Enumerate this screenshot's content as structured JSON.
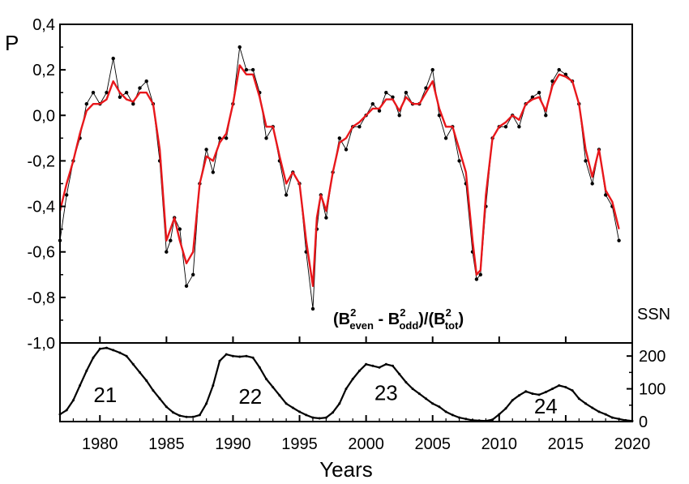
{
  "chart_data": [
    {
      "type": "line",
      "panel": "polarity",
      "ylabel": "P",
      "annotation": {
        "main_a": "(B",
        "sup1": "2",
        "sub1": "even",
        "dash": " - B",
        "sup2": "2",
        "sub2": "odd",
        "mid": ")/(B",
        "sup3": "2",
        "sub3": "tot",
        "end": ")"
      },
      "xlim": [
        1977,
        2020
      ],
      "ylim": [
        -1.0,
        0.4
      ],
      "yticks": [
        "-1,0",
        "-0,8",
        "-0,6",
        "-0,4",
        "-0,2",
        "0,0",
        "0,2",
        "0,4"
      ],
      "yticks_values": [
        -1.0,
        -0.8,
        -0.6,
        -0.4,
        -0.2,
        0.0,
        0.2,
        0.4
      ],
      "grid": false,
      "series": [
        {
          "role": "raw",
          "color": "#000000",
          "x": [
            1977.0,
            1977.5,
            1978.0,
            1978.5,
            1979.0,
            1979.5,
            1980.0,
            1980.5,
            1981.0,
            1981.5,
            1982.0,
            1982.5,
            1983.0,
            1983.5,
            1984.0,
            1984.5,
            1985.0,
            1985.3,
            1985.6,
            1986.0,
            1986.5,
            1987.0,
            1987.5,
            1988.0,
            1988.5,
            1989.0,
            1989.5,
            1990.0,
            1990.5,
            1991.0,
            1991.5,
            1992.0,
            1992.5,
            1993.0,
            1993.5,
            1994.0,
            1994.5,
            1995.0,
            1995.5,
            1996.0,
            1996.3,
            1996.6,
            1997.0,
            1997.5,
            1998.0,
            1998.5,
            1999.0,
            1999.5,
            2000.0,
            2000.5,
            2001.0,
            2001.5,
            2002.0,
            2002.5,
            2003.0,
            2003.5,
            2004.0,
            2004.5,
            2005.0,
            2005.5,
            2006.0,
            2006.5,
            2007.0,
            2007.5,
            2008.0,
            2008.3,
            2008.6,
            2009.0,
            2009.5,
            2010.0,
            2010.5,
            2011.0,
            2011.5,
            2012.0,
            2012.5,
            2013.0,
            2013.5,
            2014.0,
            2014.5,
            2015.0,
            2015.5,
            2016.0,
            2016.5,
            2017.0,
            2017.5,
            2018.0,
            2018.5,
            2019.0
          ],
          "values": [
            -0.55,
            -0.35,
            -0.2,
            -0.1,
            0.05,
            0.1,
            0.05,
            0.1,
            0.25,
            0.08,
            0.1,
            0.05,
            0.12,
            0.15,
            0.05,
            -0.2,
            -0.6,
            -0.55,
            -0.45,
            -0.5,
            -0.75,
            -0.7,
            -0.3,
            -0.15,
            -0.25,
            -0.1,
            -0.1,
            0.05,
            0.3,
            0.2,
            0.2,
            0.1,
            -0.1,
            -0.05,
            -0.2,
            -0.35,
            -0.25,
            -0.3,
            -0.6,
            -0.85,
            -0.5,
            -0.35,
            -0.45,
            -0.25,
            -0.1,
            -0.15,
            -0.05,
            -0.05,
            0.0,
            0.05,
            0.02,
            0.1,
            0.08,
            0.0,
            0.1,
            0.05,
            0.05,
            0.12,
            0.2,
            0.0,
            -0.1,
            -0.05,
            -0.2,
            -0.3,
            -0.6,
            -0.72,
            -0.7,
            -0.4,
            -0.1,
            -0.05,
            -0.05,
            0.0,
            -0.05,
            0.05,
            0.08,
            0.1,
            0.0,
            0.15,
            0.2,
            0.18,
            0.15,
            0.05,
            -0.2,
            -0.3,
            -0.15,
            -0.35,
            -0.4,
            -0.55
          ]
        },
        {
          "role": "smoothed",
          "color": "#e8171b",
          "x": [
            1977.0,
            1977.5,
            1978.0,
            1978.5,
            1979.0,
            1979.5,
            1980.0,
            1980.5,
            1981.0,
            1981.5,
            1982.0,
            1982.5,
            1983.0,
            1983.5,
            1984.0,
            1984.5,
            1985.0,
            1985.3,
            1985.6,
            1986.0,
            1986.5,
            1987.0,
            1987.5,
            1988.0,
            1988.5,
            1989.0,
            1989.5,
            1990.0,
            1990.5,
            1991.0,
            1991.5,
            1992.0,
            1992.5,
            1993.0,
            1993.5,
            1994.0,
            1994.5,
            1995.0,
            1995.5,
            1996.0,
            1996.3,
            1996.6,
            1997.0,
            1997.5,
            1998.0,
            1998.5,
            1999.0,
            1999.5,
            2000.0,
            2000.5,
            2001.0,
            2001.5,
            2002.0,
            2002.5,
            2003.0,
            2003.5,
            2004.0,
            2004.5,
            2005.0,
            2005.5,
            2006.0,
            2006.5,
            2007.0,
            2007.5,
            2008.0,
            2008.3,
            2008.6,
            2009.0,
            2009.5,
            2010.0,
            2010.5,
            2011.0,
            2011.5,
            2012.0,
            2012.5,
            2013.0,
            2013.5,
            2014.0,
            2014.5,
            2015.0,
            2015.5,
            2016.0,
            2016.5,
            2017.0,
            2017.5,
            2018.0,
            2018.5,
            2019.0
          ],
          "values": [
            -0.42,
            -0.3,
            -0.2,
            -0.08,
            0.02,
            0.05,
            0.05,
            0.07,
            0.15,
            0.1,
            0.07,
            0.06,
            0.1,
            0.1,
            0.05,
            -0.15,
            -0.55,
            -0.5,
            -0.45,
            -0.55,
            -0.65,
            -0.6,
            -0.3,
            -0.18,
            -0.2,
            -0.12,
            -0.08,
            0.05,
            0.22,
            0.18,
            0.18,
            0.08,
            -0.05,
            -0.05,
            -0.18,
            -0.3,
            -0.25,
            -0.3,
            -0.55,
            -0.75,
            -0.45,
            -0.35,
            -0.42,
            -0.25,
            -0.12,
            -0.1,
            -0.05,
            -0.03,
            0.0,
            0.03,
            0.03,
            0.07,
            0.07,
            0.02,
            0.08,
            0.05,
            0.05,
            0.1,
            0.15,
            0.03,
            -0.05,
            -0.05,
            -0.15,
            -0.25,
            -0.55,
            -0.7,
            -0.68,
            -0.35,
            -0.1,
            -0.05,
            -0.03,
            0.0,
            -0.02,
            0.05,
            0.07,
            0.08,
            0.02,
            0.13,
            0.18,
            0.17,
            0.15,
            0.05,
            -0.15,
            -0.27,
            -0.15,
            -0.33,
            -0.38,
            -0.5
          ]
        }
      ]
    },
    {
      "type": "line",
      "panel": "sunspots",
      "ylabel": "SSN",
      "xlabel": "Years",
      "xlim": [
        1977,
        2020
      ],
      "ylim": [
        0,
        240
      ],
      "xticks": [
        "1980",
        "1985",
        "1990",
        "1995",
        "2000",
        "2005",
        "2010",
        "2015",
        "2020"
      ],
      "xticks_values": [
        1980,
        1985,
        1990,
        1995,
        2000,
        2005,
        2010,
        2015,
        2020
      ],
      "yticks": [
        "0",
        "100",
        "200"
      ],
      "yticks_values": [
        0,
        100,
        200
      ],
      "cycle_labels": [
        {
          "label": "21",
          "x": 1980.4,
          "y": 60
        },
        {
          "label": "22",
          "x": 1991.3,
          "y": 55
        },
        {
          "label": "23",
          "x": 2001.5,
          "y": 65
        },
        {
          "label": "24",
          "x": 2013.5,
          "y": 25
        }
      ],
      "series": [
        {
          "color": "#000000",
          "x": [
            1977.0,
            1977.5,
            1978.0,
            1978.5,
            1979.0,
            1979.5,
            1980.0,
            1980.5,
            1981.0,
            1981.5,
            1982.0,
            1982.5,
            1983.0,
            1983.5,
            1984.0,
            1984.5,
            1985.0,
            1985.5,
            1986.0,
            1986.5,
            1987.0,
            1987.5,
            1988.0,
            1988.5,
            1989.0,
            1989.5,
            1990.0,
            1990.5,
            1991.0,
            1991.5,
            1992.0,
            1992.5,
            1993.0,
            1993.5,
            1994.0,
            1994.5,
            1995.0,
            1995.5,
            1996.0,
            1996.5,
            1997.0,
            1997.5,
            1998.0,
            1998.5,
            1999.0,
            1999.5,
            2000.0,
            2000.5,
            2001.0,
            2001.5,
            2002.0,
            2002.5,
            2003.0,
            2003.5,
            2004.0,
            2004.5,
            2005.0,
            2005.5,
            2006.0,
            2006.5,
            2007.0,
            2007.5,
            2008.0,
            2008.5,
            2009.0,
            2009.5,
            2010.0,
            2010.5,
            2011.0,
            2011.5,
            2012.0,
            2012.5,
            2013.0,
            2013.5,
            2014.0,
            2014.5,
            2015.0,
            2015.5,
            2016.0,
            2016.5,
            2017.0,
            2017.5,
            2018.0,
            2018.5,
            2019.0,
            2019.5,
            2020.0
          ],
          "values": [
            22,
            35,
            65,
            110,
            155,
            195,
            222,
            225,
            218,
            210,
            200,
            175,
            150,
            125,
            95,
            70,
            45,
            28,
            18,
            14,
            14,
            20,
            55,
            110,
            185,
            205,
            200,
            198,
            200,
            195,
            165,
            130,
            105,
            80,
            55,
            42,
            30,
            20,
            12,
            10,
            12,
            28,
            55,
            100,
            130,
            155,
            175,
            170,
            165,
            175,
            170,
            145,
            120,
            100,
            85,
            70,
            55,
            45,
            30,
            20,
            12,
            8,
            4,
            3,
            2,
            6,
            22,
            40,
            65,
            80,
            92,
            85,
            82,
            90,
            100,
            110,
            105,
            95,
            70,
            55,
            42,
            30,
            22,
            12,
            8,
            4,
            2
          ]
        }
      ]
    }
  ]
}
